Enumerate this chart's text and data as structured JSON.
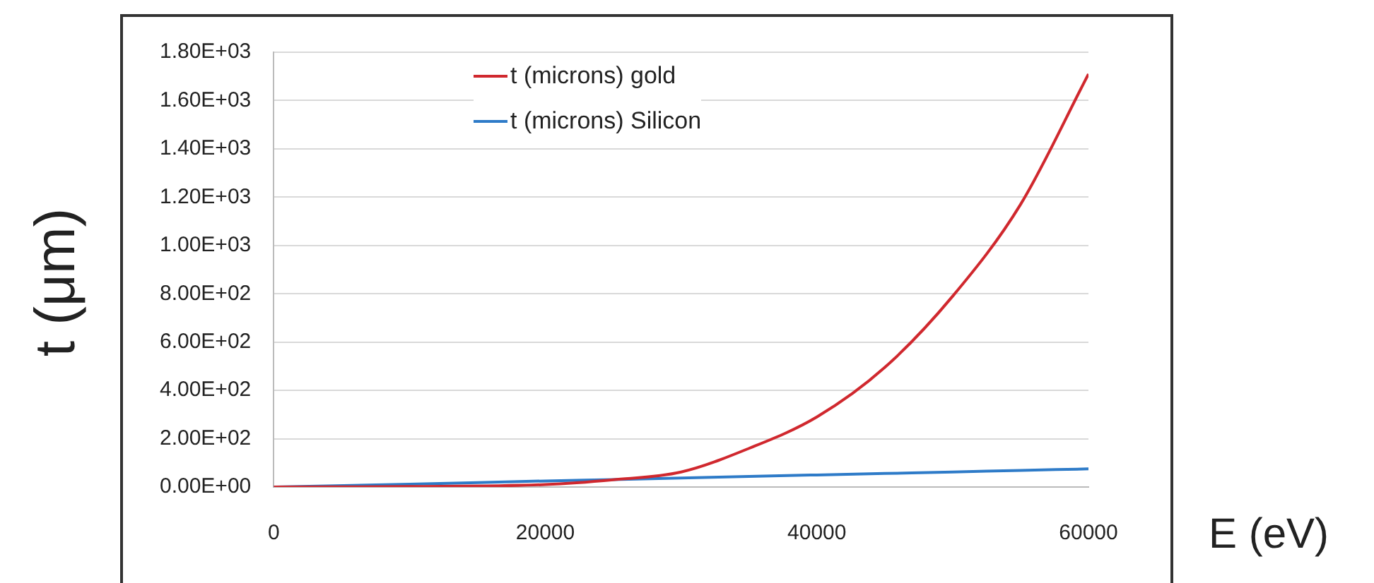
{
  "chart_data": {
    "type": "line",
    "xlabel": "E (eV)",
    "ylabel": "t (μm)",
    "legend": "top left",
    "grid": "y",
    "marker": "none",
    "line_style": "solid",
    "xlim": [
      0,
      60000
    ],
    "xticks": [
      0,
      20000,
      40000,
      60000
    ],
    "ylim": [
      0,
      1800
    ],
    "yticks": [
      {
        "value": 0,
        "label": "0.00E+00"
      },
      {
        "value": 200,
        "label": "2.00E+02"
      },
      {
        "value": 400,
        "label": "4.00E+02"
      },
      {
        "value": 600,
        "label": "6.00E+02"
      },
      {
        "value": 800,
        "label": "8.00E+02"
      },
      {
        "value": 1000,
        "label": "1.00E+03"
      },
      {
        "value": 1200,
        "label": "1.20E+03"
      },
      {
        "value": 1400,
        "label": "1.40E+03"
      },
      {
        "value": 1600,
        "label": "1.60E+03"
      },
      {
        "value": 1800,
        "label": "1.80E+03"
      }
    ],
    "x": [
      0,
      10000,
      20000,
      25000,
      30000,
      35000,
      40000,
      45000,
      50000,
      55000,
      60000
    ],
    "series": [
      {
        "name": "t (microns) gold",
        "color": "#d0282e",
        "values": [
          0,
          2,
          10,
          30,
          62,
          160,
          290,
          495,
          790,
          1170,
          1710
        ]
      },
      {
        "name": "t (microns) Silicon",
        "color": "#2e7bc8",
        "values": [
          0,
          12,
          25,
          31,
          37,
          44,
          50,
          56,
          62,
          69,
          75
        ]
      }
    ]
  }
}
